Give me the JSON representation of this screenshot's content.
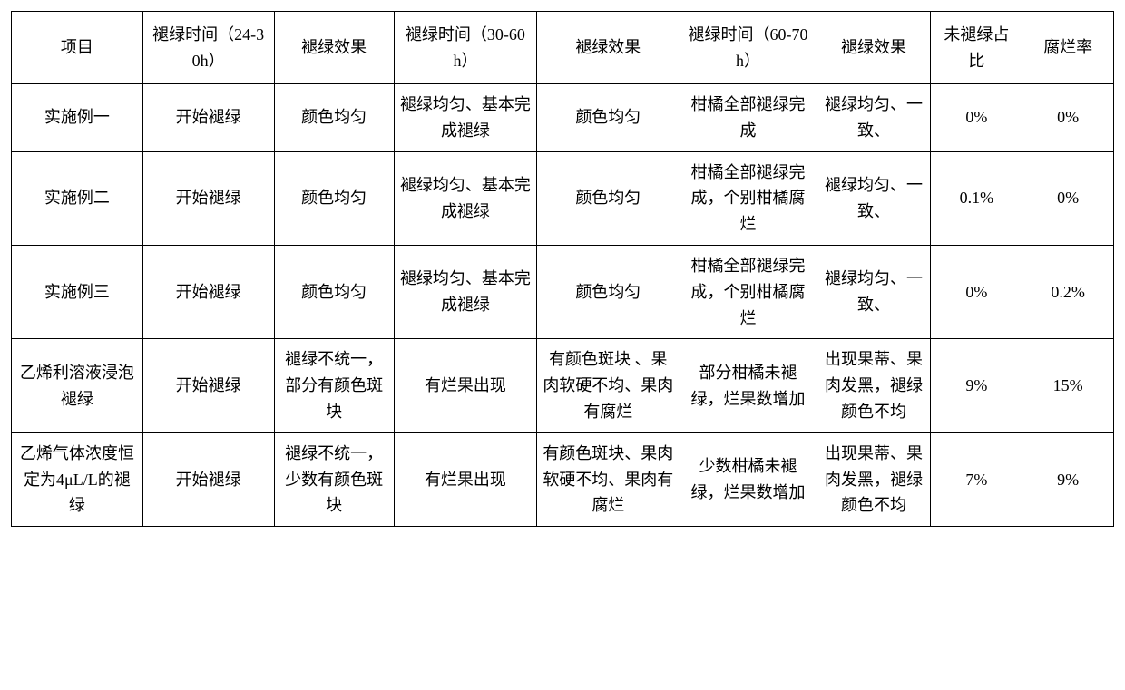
{
  "table": {
    "columns": [
      "项目",
      "褪绿时间（24-30h）",
      "褪绿效果",
      "褪绿时间（30-60h）",
      "褪绿效果",
      "褪绿时间（60-70h）",
      "褪绿效果",
      "未褪绿占比",
      "腐烂率"
    ],
    "rows": [
      [
        "实施例一",
        "开始褪绿",
        "颜色均匀",
        "褪绿均匀、基本完成褪绿",
        "颜色均匀",
        "柑橘全部褪绿完成",
        "褪绿均匀、一致、",
        "0%",
        "0%"
      ],
      [
        "实施例二",
        "开始褪绿",
        "颜色均匀",
        "褪绿均匀、基本完成褪绿",
        "颜色均匀",
        "柑橘全部褪绿完成，个别柑橘腐烂",
        "褪绿均匀、一致、",
        "0.1%",
        "0%"
      ],
      [
        "实施例三",
        "开始褪绿",
        "颜色均匀",
        "褪绿均匀、基本完成褪绿",
        "颜色均匀",
        "柑橘全部褪绿完成，个别柑橘腐烂",
        "褪绿均匀、一致、",
        "0%",
        "0.2%"
      ],
      [
        "乙烯利溶液浸泡褪绿",
        "开始褪绿",
        "褪绿不统一，部分有颜色斑块",
        "有烂果出现",
        "有颜色斑块 、果肉软硬不均、果肉有腐烂",
        "部分柑橘未褪绿，烂果数增加",
        "出现果蒂、果肉发黑，褪绿颜色不均",
        "9%",
        "15%"
      ],
      [
        "乙烯气体浓度恒定为4μL/L的褪绿",
        "开始褪绿",
        "褪绿不统一，少数有颜色斑块",
        "有烂果出现",
        "有颜色斑块、果肉软硬不均、果肉有腐烂",
        "少数柑橘未褪绿，烂果数增加",
        "出现果蒂、果肉发黑，褪绿颜色不均",
        "7%",
        "9%"
      ]
    ],
    "styling": {
      "border_color": "#000000",
      "background_color": "#ffffff",
      "text_color": "#000000",
      "font_size_pt": 14,
      "font_family": "SimSun",
      "cell_align": "center",
      "col_widths_pct": [
        11.5,
        11.5,
        10.5,
        12.5,
        12.5,
        12,
        10,
        8,
        8
      ]
    }
  }
}
